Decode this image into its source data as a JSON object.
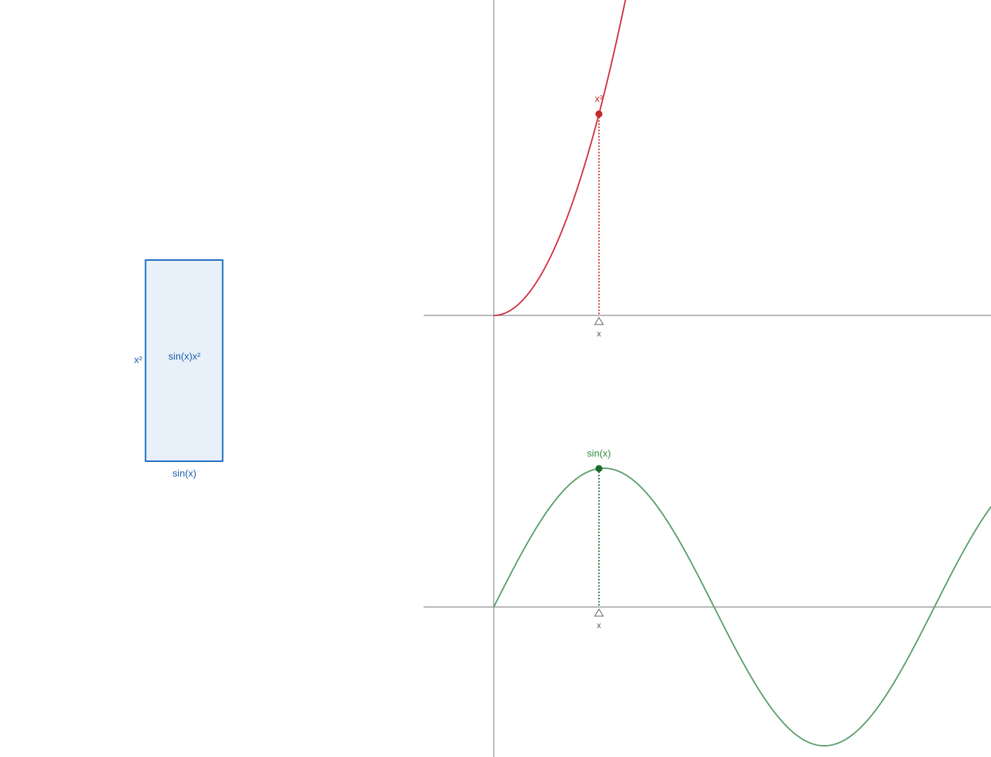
{
  "x_value": 1.5,
  "rectangle": {
    "width_label": "sin(x)",
    "height_label": "x²",
    "area_label": "sin(x)x²",
    "stroke_color": "#1565c0",
    "fill_color": "#e8f0fa",
    "text_color": "#1f5fa8"
  },
  "top_graph": {
    "function": "x²",
    "point_label": "x²",
    "slider_label": "x",
    "color": "#d32f3f",
    "point_color": "#c62828",
    "x_range": [
      -0.6,
      4.2
    ],
    "y_range": [
      -2.5,
      8.6
    ]
  },
  "bottom_graph": {
    "function": "sin(x)",
    "point_label": "sin(x)",
    "slider_label": "x",
    "color": "#5a9e6a",
    "point_color": "#1b6b2a",
    "label_color": "#2e8b3e",
    "x_range": [
      -0.6,
      4.2
    ],
    "y_range": [
      -1.07,
      1.5
    ]
  },
  "icons": {
    "slider_handle": "triangle-up-icon"
  }
}
